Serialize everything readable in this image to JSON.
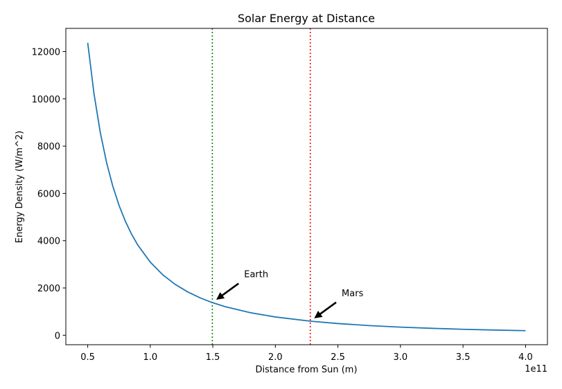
{
  "chart_data": {
    "type": "line",
    "title": "Solar Energy at Distance",
    "xlabel": "Distance from Sun (m)",
    "ylabel": "Energy Density (W/m^2)",
    "x_offset_text": "1e11",
    "x_scale": 100000000000,
    "xlim": [
      0.325,
      4.175
    ],
    "ylim": [
      -400,
      12980
    ],
    "x_ticks": [
      0.5,
      1.0,
      1.5,
      2.0,
      2.5,
      3.0,
      3.5,
      4.0
    ],
    "x_tick_labels": [
      "0.5",
      "1.0",
      "1.5",
      "2.0",
      "2.5",
      "3.0",
      "3.5",
      "4.0"
    ],
    "y_ticks": [
      0,
      2000,
      4000,
      6000,
      8000,
      10000,
      12000
    ],
    "y_tick_labels": [
      "0",
      "2000",
      "4000",
      "6000",
      "8000",
      "10000",
      "12000"
    ],
    "grid": false,
    "series": [
      {
        "color": "#1f77b4",
        "x": [
          0.5,
          0.55,
          0.6,
          0.65,
          0.7,
          0.75,
          0.8,
          0.85,
          0.9,
          1.0,
          1.1,
          1.2,
          1.3,
          1.4,
          1.496,
          1.6,
          1.8,
          2.0,
          2.279,
          2.5,
          2.75,
          3.0,
          3.25,
          3.5,
          3.75,
          4.0
        ],
        "y": [
          12370,
          10223,
          8590,
          7320,
          6312,
          5498,
          4832,
          4280,
          3818,
          3093,
          2556,
          2148,
          1830,
          1578,
          1381,
          1208,
          955,
          773,
          595,
          495,
          409,
          344,
          293,
          252,
          220,
          193
        ]
      }
    ],
    "vlines": [
      {
        "x": 1.496,
        "color": "#008000",
        "style": "dotted"
      },
      {
        "x": 2.279,
        "color": "#ff0000",
        "style": "dotted"
      }
    ],
    "annotations": [
      {
        "text": "Earth",
        "x": 1.496,
        "y": 1381,
        "text_x": 1.75,
        "text_y": 2600
      },
      {
        "text": "Mars",
        "x": 2.279,
        "y": 595,
        "text_x": 2.53,
        "text_y": 1800
      }
    ]
  }
}
